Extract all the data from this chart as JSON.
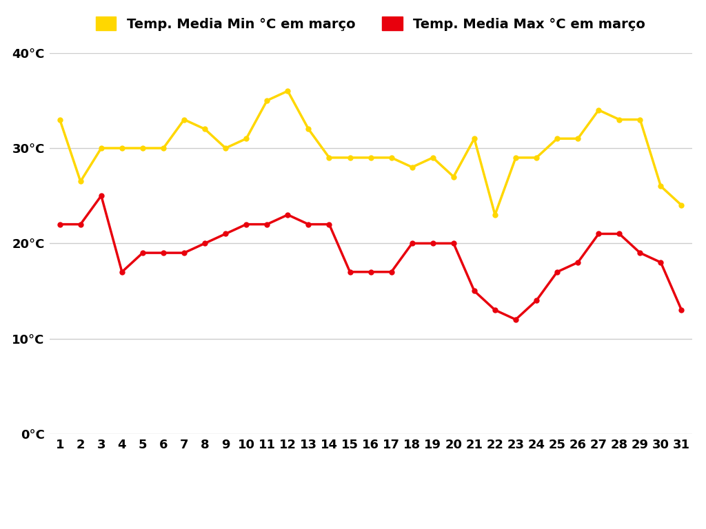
{
  "days": [
    1,
    2,
    3,
    4,
    5,
    6,
    7,
    8,
    9,
    10,
    11,
    12,
    13,
    14,
    15,
    16,
    17,
    18,
    19,
    20,
    21,
    22,
    23,
    24,
    25,
    26,
    27,
    28,
    29,
    30,
    31
  ],
  "temp_min": [
    33,
    26.5,
    30,
    30,
    30,
    30,
    33,
    32,
    30,
    31,
    35,
    36,
    32,
    29,
    29,
    29,
    29,
    28,
    29,
    27,
    31,
    23,
    29,
    29,
    31,
    31,
    34,
    33,
    33,
    26,
    24
  ],
  "temp_max": [
    22,
    22,
    25,
    17,
    19,
    19,
    19,
    20,
    21,
    22,
    22,
    23,
    22,
    22,
    17,
    17,
    17,
    20,
    20,
    20,
    15,
    13,
    12,
    14,
    17,
    18,
    21,
    21,
    19,
    18,
    13
  ],
  "ylim": [
    0,
    40
  ],
  "yticks": [
    0,
    10,
    20,
    30,
    40
  ],
  "ytick_labels": [
    "0°C",
    "10°C",
    "20°C",
    "30°C",
    "40°C"
  ],
  "legend_min_label": "Temp. Media Min °C em março",
  "legend_max_label": "Temp. Media Max °C em março",
  "color_min": "#FFD700",
  "color_max": "#E8000D",
  "background_color": "#FFFFFF",
  "grid_color": "#CCCCCC",
  "line_width": 2.5,
  "marker_size": 5,
  "font_size_legend": 14,
  "font_size_ticks": 13,
  "font_weight": "bold"
}
